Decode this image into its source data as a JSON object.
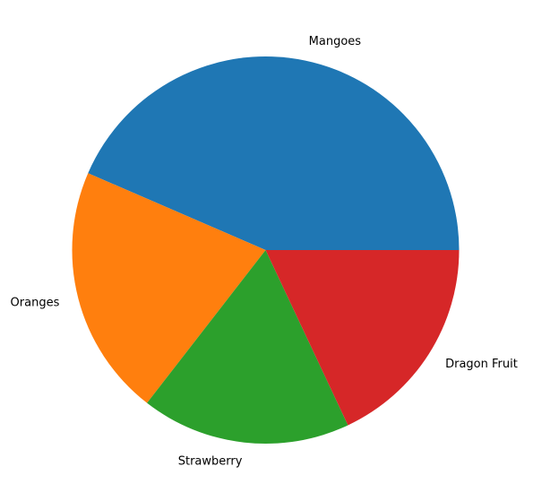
{
  "chart_data": {
    "type": "pie",
    "slices": [
      {
        "label": "Mangoes",
        "value": 43.5,
        "color": "#1f77b4"
      },
      {
        "label": "Oranges",
        "value": 21.0,
        "color": "#ff7f0e"
      },
      {
        "label": "Strawberry",
        "value": 17.5,
        "color": "#2ca02c"
      },
      {
        "label": "Dragon Fruit",
        "value": 18.0,
        "color": "#d62728"
      }
    ],
    "start_angle": 0,
    "direction": "counterclockwise"
  }
}
